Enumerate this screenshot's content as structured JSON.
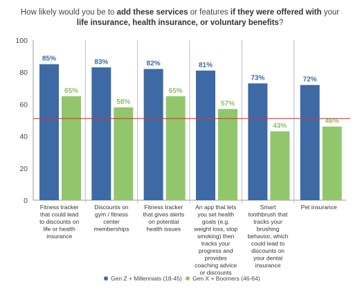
{
  "title": {
    "p1": "How likely would you be to ",
    "b1": "add these services",
    "p2": " or features ",
    "b2": "if they were offered with",
    "p3": " your",
    "b3": "life insurance, health insurance, or voluntary benefits",
    "p4": "?"
  },
  "chart_data": {
    "type": "bar",
    "categories": [
      [
        "Fitness tracker",
        "that could lead",
        "to discounts on",
        "life or health",
        "insurance"
      ],
      [
        "Discounts on",
        "gym / fitness",
        "center",
        "memberships"
      ],
      [
        "Fitness tracker",
        "that gives alerts",
        "on potential",
        "health issues"
      ],
      [
        "An app that lets",
        "you set health",
        "goals (e.g.",
        "weight loss, stop",
        "smoking) then",
        "tracks your",
        "progress and",
        "provides",
        "coaching advice",
        "or discounts"
      ],
      [
        "Smart",
        "toothbrush that",
        "tracks your",
        "brushing",
        "behavior, which",
        "could lead to",
        "discounts on",
        "your dental",
        "insurance"
      ],
      [
        "Pet insurance"
      ]
    ],
    "series": [
      {
        "name": "Gen Z + Millennials (18-45)",
        "color": "#3d6aa5",
        "label_color": "#3d6aa5",
        "values": [
          85,
          83,
          82,
          81,
          73,
          72
        ],
        "labels": [
          "85%",
          "83%",
          "82%",
          "81%",
          "73%",
          "72%"
        ]
      },
      {
        "name": "Gen X + Boomers (46-64)",
        "color": "#92c66c",
        "label_color": "#8cbf62",
        "values": [
          65,
          58,
          65,
          57,
          43,
          46
        ],
        "labels": [
          "65%",
          "58%",
          "65%",
          "57%",
          "43%",
          "46%"
        ]
      }
    ],
    "ylim": [
      0,
      100
    ],
    "yticks": [
      "0",
      "20",
      "40",
      "60",
      "80",
      "100"
    ],
    "reference_line": 51,
    "reference_color": "#e03030",
    "grid": false,
    "legend": "bottom-center"
  }
}
